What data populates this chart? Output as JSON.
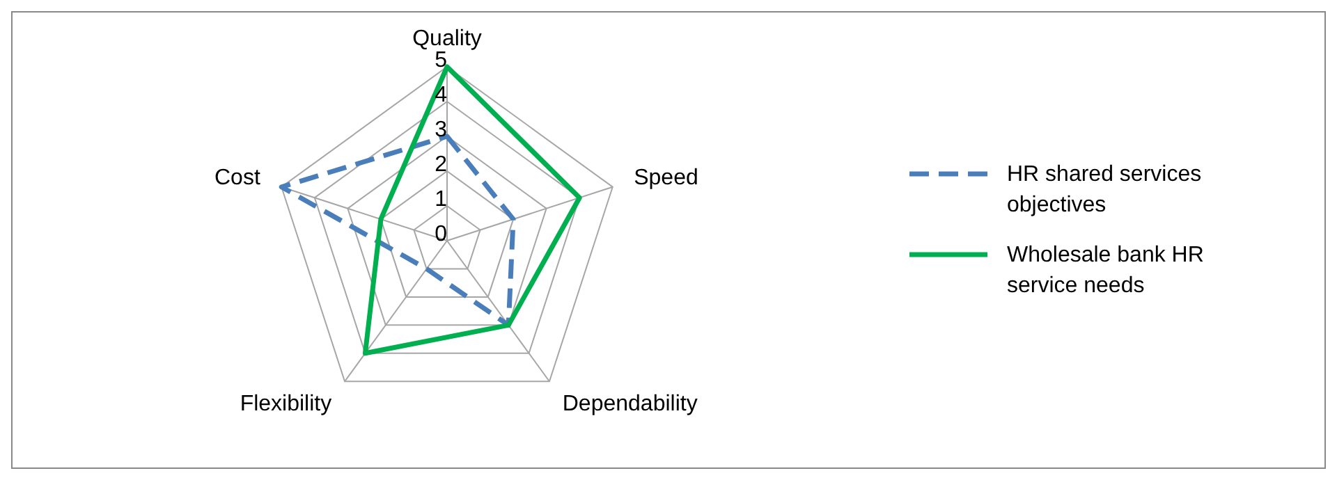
{
  "chart_data": {
    "type": "radar",
    "categories": [
      "Quality",
      "Speed",
      "Dependability",
      "Flexibility",
      "Cost"
    ],
    "series": [
      {
        "name": "HR shared services objectives",
        "color": "#4a7ebb",
        "values": [
          3,
          2,
          3,
          1,
          5
        ],
        "line_style": "dashed"
      },
      {
        "name": "Wholesale bank HR service needs",
        "color": "#00b050",
        "values": [
          5,
          4,
          3,
          4,
          2
        ],
        "line_style": "solid"
      }
    ],
    "ylim": [
      0,
      5
    ],
    "yticks": [
      0,
      1,
      2,
      3,
      4,
      5
    ],
    "grid": true,
    "legend": "right",
    "marker": "none"
  }
}
